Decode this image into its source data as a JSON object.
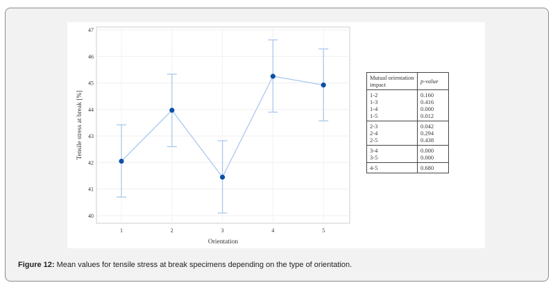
{
  "chart_data": {
    "type": "line",
    "xlabel": "Orientation",
    "ylabel": "Tensile stress at break [%]",
    "categories": [
      "1",
      "2",
      "3",
      "4",
      "5"
    ],
    "values": [
      42.05,
      43.97,
      41.45,
      45.25,
      44.92
    ],
    "error_low": [
      40.7,
      42.6,
      40.1,
      43.9,
      43.57
    ],
    "error_high": [
      43.42,
      45.33,
      42.82,
      46.62,
      46.28
    ],
    "ylim": [
      40,
      47
    ],
    "yticks": [
      "40",
      "41",
      "42",
      "43",
      "44",
      "45",
      "46",
      "47"
    ],
    "grid": true,
    "line_color": "#a9c8ec",
    "point_color": "#0d4fa8"
  },
  "table": {
    "headers": [
      "Mutual orientation impact",
      "p-value"
    ],
    "groups": [
      [
        [
          "1-2",
          "0.160"
        ],
        [
          "1-3",
          "0.416"
        ],
        [
          "1-4",
          "0.000"
        ],
        [
          "1-5",
          "0.012"
        ]
      ],
      [
        [
          "2-3",
          "0.042"
        ],
        [
          "2-4",
          "0.294"
        ],
        [
          "2-5",
          "0.438"
        ]
      ],
      [
        [
          "3-4",
          "0.000"
        ],
        [
          "3-5",
          "0.000"
        ]
      ],
      [
        [
          "4-5",
          "0.680"
        ]
      ]
    ]
  },
  "caption": {
    "label": "Figure 12:",
    "text": " Mean values for tensile stress at break specimens depending on the type of orientation."
  }
}
